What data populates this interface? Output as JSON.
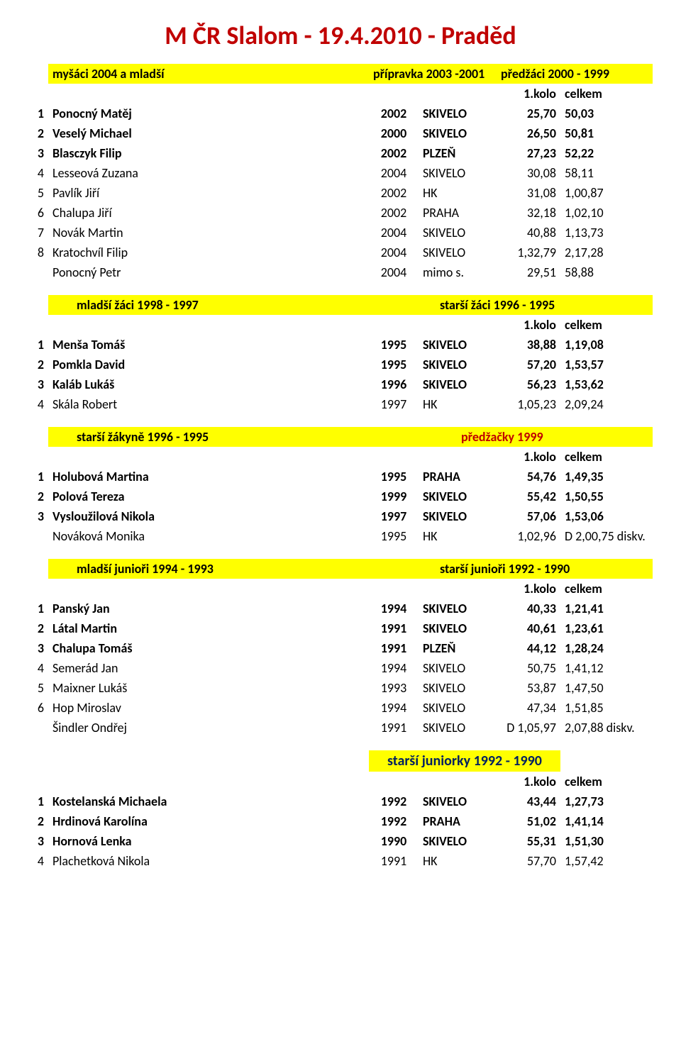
{
  "title": "M ČR Slalom  - 19.4.2010 - Praděd",
  "title_color": "#c00000",
  "highlight_color": "#ffff00",
  "kolo_label": "1.kolo",
  "celkem_label": "celkem",
  "sections": {
    "a": {
      "band_left": "myšáci 2004 a mladší",
      "band_mid": "přípravka 2003 -2001",
      "band_right": "předžáci  2000 -  1999",
      "rows": [
        {
          "rank": "1",
          "name": "Ponocný Matěj",
          "year": "2002",
          "club": "SKIVELO",
          "v1": "25,70",
          "v2": "50,03",
          "bold": true
        },
        {
          "rank": "2",
          "name": "Veselý Michael",
          "year": "2000",
          "club": "SKIVELO",
          "v1": "26,50",
          "v2": "50,81",
          "bold": true
        },
        {
          "rank": "3",
          "name": "Blasczyk Filip",
          "year": "2002",
          "club": "PLZEŇ",
          "v1": "27,23",
          "v2": "52,22",
          "bold": true
        },
        {
          "rank": "4",
          "name": "Lesseová Zuzana",
          "year": "2004",
          "club": "SKIVELO",
          "v1": "30,08",
          "v2": "58,11",
          "bold": false
        },
        {
          "rank": "5",
          "name": "Pavlík Jiří",
          "year": "2002",
          "club": "HK",
          "v1": "31,08",
          "v2": "1,00,87",
          "bold": false
        },
        {
          "rank": "6",
          "name": "Chalupa   Jiří",
          "year": "2002",
          "club": "PRAHA",
          "v1": "32,18",
          "v2": "1,02,10",
          "bold": false
        },
        {
          "rank": "7",
          "name": "Novák Martin",
          "year": "2004",
          "club": "SKIVELO",
          "v1": "40,88",
          "v2": "1,13,73",
          "bold": false
        },
        {
          "rank": "8",
          "name": "Kratochvíl Filip",
          "year": "2004",
          "club": "SKIVELO",
          "v1": "1,32,79",
          "v2": "2,17,28",
          "bold": false
        },
        {
          "rank": "",
          "name": "Ponocný Petr",
          "year": "2004",
          "club": "mimo s.",
          "v1": "29,51",
          "v2": "58,88",
          "bold": false
        }
      ]
    },
    "b": {
      "band_left": "mladší žáci  1998  - 1997",
      "band_right": "starší žáci   1996 - 1995",
      "rows": [
        {
          "rank": "1",
          "name": "Menša Tomáš",
          "year": "1995",
          "club": "SKIVELO",
          "v1": "38,88",
          "v2": "1,19,08",
          "bold": true
        },
        {
          "rank": "2",
          "name": "Pomkla David",
          "year": "1995",
          "club": "SKIVELO",
          "v1": "57,20",
          "v2": "1,53,57",
          "bold": true
        },
        {
          "rank": "3",
          "name": "Kaláb Lukáš",
          "year": "1996",
          "club": "SKIVELO",
          "v1": "56,23",
          "v2": "1,53,62",
          "bold": true
        },
        {
          "rank": "4",
          "name": "Skála Robert",
          "year": "1997",
          "club": "HK",
          "v1": "1,05,23",
          "v2": "2,09,24",
          "bold": false
        }
      ]
    },
    "c": {
      "band_left": "starší žákyně  1996 - 1995",
      "band_right": "předžačky 1999",
      "band_right_color": "#c00000",
      "rows": [
        {
          "rank": "1",
          "name": "Holubová Martina",
          "year": "1995",
          "club": "PRAHA",
          "v1": "54,76",
          "v2": "1,49,35",
          "bold": true
        },
        {
          "rank": "2",
          "name": "Polová Tereza",
          "year": "1999",
          "club": "SKIVELO",
          "v1": "55,42",
          "v2": "1,50,55",
          "bold": true
        },
        {
          "rank": "3",
          "name": "Vysloužilová Nikola",
          "year": "1997",
          "club": "SKIVELO",
          "v1": "57,06",
          "v2": "1,53,06",
          "bold": true
        },
        {
          "rank": "",
          "name": "Nováková Monika",
          "year": "1995",
          "club": "HK",
          "v1": "1,02,96",
          "v2": "D 2,00,75 diskv.",
          "bold": false
        }
      ]
    },
    "d": {
      "band_left": "mladší junioři  1994 - 1993",
      "band_right": "starší junioři 1992 - 1990",
      "rows": [
        {
          "rank": "1",
          "name": "Panský Jan",
          "year": "1994",
          "club": "SKIVELO",
          "v1": "40,33",
          "v2": "1,21,41",
          "bold": true
        },
        {
          "rank": "2",
          "name": "Látal Martin",
          "year": "1991",
          "club": "SKIVELO",
          "v1": "40,61",
          "v2": "1,23,61",
          "bold": true
        },
        {
          "rank": "3",
          "name": "Chalupa Tomáš",
          "year": "1991",
          "club": "PLZEŇ",
          "v1": "44,12",
          "v2": "1,28,24",
          "bold": true
        },
        {
          "rank": "4",
          "name": "Semerád Jan",
          "year": "1994",
          "club": "SKIVELO",
          "v1": "50,75",
          "v2": "1,41,12",
          "bold": false
        },
        {
          "rank": "5",
          "name": "Maixner Lukáš",
          "year": "1993",
          "club": "SKIVELO",
          "v1": "53,87",
          "v2": "1,47,50",
          "bold": false
        },
        {
          "rank": "6",
          "name": "Hop Miroslav",
          "year": "1994",
          "club": "SKIVELO",
          "v1": "47,34",
          "v2": "1,51,85",
          "bold": false
        },
        {
          "rank": "",
          "name": "Šindler Ondřej",
          "year": "1991",
          "club": "SKIVELO",
          "v1": "D 1,05,97",
          "v2": "2,07,88 diskv.",
          "bold": false
        }
      ]
    },
    "e": {
      "title": "starší juniorky  1992 - 1990",
      "title_color": "#002060",
      "rows": [
        {
          "rank": "1",
          "name": "Kostelanská Michaela",
          "year": "1992",
          "club": "SKIVELO",
          "v1": "43,44",
          "v2": "1,27,73",
          "bold": true
        },
        {
          "rank": "2",
          "name": "Hrdinová Karolína",
          "year": "1992",
          "club": "PRAHA",
          "v1": "51,02",
          "v2": "1,41,14",
          "bold": true
        },
        {
          "rank": "3",
          "name": "Hornová Lenka",
          "year": "1990",
          "club": "SKIVELO",
          "v1": "55,31",
          "v2": "1,51,30",
          "bold": true
        },
        {
          "rank": "4",
          "name": "Plachetková Nikola",
          "year": "1991",
          "club": "HK",
          "v1": "57,70",
          "v2": "1,57,42",
          "bold": false
        }
      ]
    }
  }
}
